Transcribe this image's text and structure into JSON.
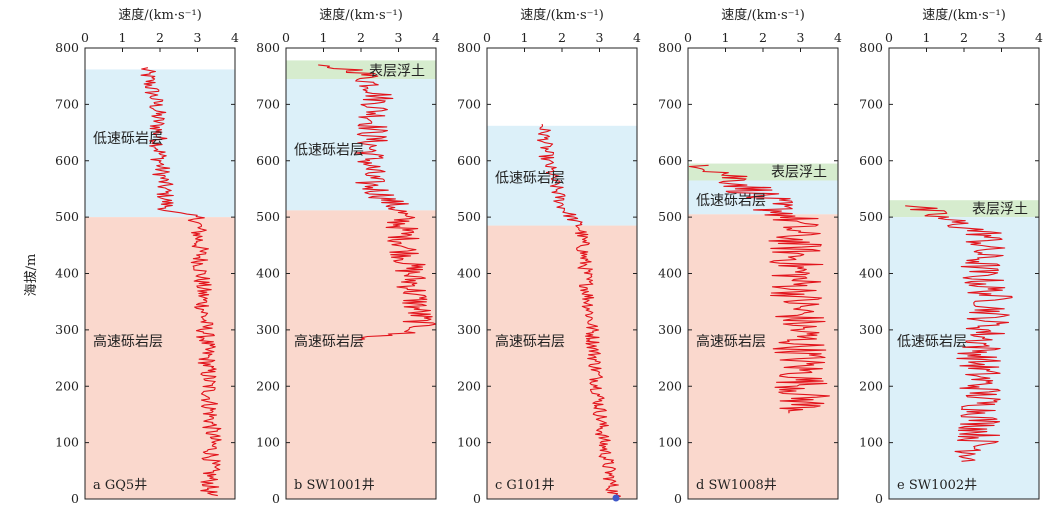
{
  "figure": {
    "y_axis_label": "海拔/m",
    "x_axis_label": "速度/(km·s⁻¹)"
  },
  "colors": {
    "low_velocity_zone": "#dcf0f9",
    "high_velocity_zone": "#fad8cd",
    "surface_soil_zone": "#d6ecce",
    "velocity_curve": "#e2141c",
    "axis": "#222222"
  },
  "chart_data": [
    {
      "type": "line",
      "panel_label": "a GQ5井",
      "xlabel": "速度/(km·s⁻¹)",
      "ylabel": "海拔/m",
      "xlim": [
        0,
        4
      ],
      "ylim": [
        0,
        800
      ],
      "x_ticks": [
        0,
        1,
        2,
        3,
        4
      ],
      "y_ticks": [
        0,
        100,
        200,
        300,
        400,
        500,
        600,
        700,
        800
      ],
      "zones": [
        {
          "label": "低速砾岩层",
          "from": 500,
          "to": 762,
          "kind": "low",
          "label_at": [
            0.35,
            640
          ]
        },
        {
          "label": "高速砾岩层",
          "from": 0,
          "to": 500,
          "kind": "high",
          "label_at": [
            0.35,
            280
          ]
        }
      ],
      "series": [
        {
          "top": 765,
          "bottom": 5,
          "velocity_profile": [
            [
              765,
              1.6
            ],
            [
              700,
              1.9
            ],
            [
              600,
              2.0
            ],
            [
              510,
              2.2
            ],
            [
              500,
              3.0
            ],
            [
              300,
              3.2
            ],
            [
              100,
              3.4
            ],
            [
              5,
              3.3
            ]
          ],
          "noise": 0.25
        }
      ]
    },
    {
      "type": "line",
      "panel_label": "b SW1001井",
      "xlabel": "速度/(km·s⁻¹)",
      "ylabel": "海拔/m",
      "xlim": [
        0,
        4
      ],
      "ylim": [
        0,
        800
      ],
      "x_ticks": [
        0,
        1,
        2,
        3,
        4
      ],
      "y_ticks": [
        0,
        100,
        200,
        300,
        400,
        500,
        600,
        700,
        800
      ],
      "zones": [
        {
          "label": "表层浮土",
          "from": 745,
          "to": 778,
          "kind": "soil",
          "label_at": [
            2.0,
            760
          ]
        },
        {
          "label": "低速砾岩层",
          "from": 512,
          "to": 745,
          "kind": "low",
          "label_at": [
            0.35,
            620
          ]
        },
        {
          "label": "高速砾岩层",
          "from": 0,
          "to": 512,
          "kind": "high",
          "label_at": [
            0.35,
            280
          ]
        }
      ],
      "series": [
        {
          "top": 770,
          "bottom": 280,
          "velocity_profile": [
            [
              770,
              0.6
            ],
            [
              760,
              2.0
            ],
            [
              720,
              2.5
            ],
            [
              650,
              2.3
            ],
            [
              560,
              2.2
            ],
            [
              515,
              3.0
            ],
            [
              300,
              3.6
            ],
            [
              280,
              1.6
            ]
          ],
          "noise": 0.45
        }
      ]
    },
    {
      "type": "line",
      "panel_label": "c G101井",
      "xlabel": "速度/(km·s⁻¹)",
      "ylabel": "海拔/m",
      "xlim": [
        0,
        4
      ],
      "ylim": [
        0,
        800
      ],
      "x_ticks": [
        0,
        1,
        2,
        3,
        4
      ],
      "y_ticks": [
        0,
        100,
        200,
        300,
        400,
        500,
        600,
        700,
        800
      ],
      "zones": [
        {
          "label": "低速砾岩层",
          "from": 485,
          "to": 662,
          "kind": "low",
          "label_at": [
            0.35,
            570
          ]
        },
        {
          "label": "高速砾岩层",
          "from": 0,
          "to": 485,
          "kind": "high",
          "label_at": [
            0.35,
            280
          ]
        }
      ],
      "series": [
        {
          "top": 665,
          "bottom": 2,
          "velocity_profile": [
            [
              665,
              1.5
            ],
            [
              600,
              1.6
            ],
            [
              520,
              2.0
            ],
            [
              480,
              2.5
            ],
            [
              300,
              2.8
            ],
            [
              100,
              3.1
            ],
            [
              2,
              3.4
            ]
          ],
          "noise": 0.2
        }
      ]
    },
    {
      "type": "line",
      "panel_label": "d SW1008井",
      "xlabel": "速度/(km·s⁻¹)",
      "ylabel": "海拔/m",
      "xlim": [
        0,
        4
      ],
      "ylim": [
        0,
        800
      ],
      "x_ticks": [
        0,
        1,
        2,
        3,
        4
      ],
      "y_ticks": [
        0,
        100,
        200,
        300,
        400,
        500,
        600,
        700,
        800
      ],
      "zones": [
        {
          "label": "表层浮土",
          "from": 565,
          "to": 595,
          "kind": "soil",
          "label_at": [
            2.0,
            581
          ]
        },
        {
          "label": "低速砾岩层",
          "from": 505,
          "to": 565,
          "kind": "low",
          "label_at": [
            0.35,
            530
          ]
        },
        {
          "label": "高速砾岩层",
          "from": 0,
          "to": 505,
          "kind": "high",
          "label_at": [
            0.35,
            280
          ]
        }
      ],
      "series": [
        {
          "top": 592,
          "bottom": 150,
          "velocity_profile": [
            [
              592,
              0.7
            ],
            [
              560,
              1.5
            ],
            [
              520,
              2.2
            ],
            [
              500,
              2.8
            ],
            [
              300,
              3.0
            ],
            [
              150,
              3.1
            ]
          ],
          "noise": 0.75
        }
      ]
    },
    {
      "type": "line",
      "panel_label": "e SW1002井",
      "xlabel": "速度/(km·s⁻¹)",
      "ylabel": "海拔/m",
      "xlim": [
        0,
        4
      ],
      "ylim": [
        0,
        800
      ],
      "x_ticks": [
        0,
        1,
        2,
        3,
        4
      ],
      "y_ticks": [
        0,
        100,
        200,
        300,
        400,
        500,
        600,
        700,
        800
      ],
      "zones": [
        {
          "label": "表层浮土",
          "from": 500,
          "to": 530,
          "kind": "soil",
          "label_at": [
            2.0,
            515
          ]
        },
        {
          "label": "低速砾岩层",
          "from": 0,
          "to": 500,
          "kind": "low",
          "label_at": [
            0.35,
            280
          ]
        }
      ],
      "series": [
        {
          "top": 520,
          "bottom": 65,
          "velocity_profile": [
            [
              520,
              0.6
            ],
            [
              500,
              1.3
            ],
            [
              470,
              2.6
            ],
            [
              400,
              2.4
            ],
            [
              350,
              2.8
            ],
            [
              250,
              2.4
            ],
            [
              150,
              2.5
            ],
            [
              65,
              2.3
            ]
          ],
          "noise": 0.6
        }
      ]
    }
  ]
}
